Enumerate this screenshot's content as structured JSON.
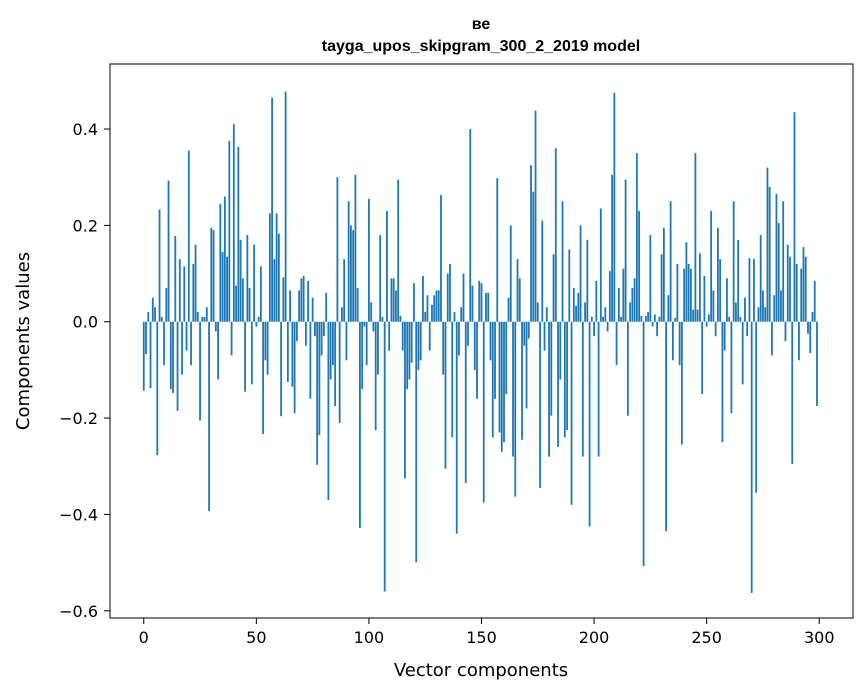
{
  "chart_data": {
    "type": "bar",
    "title_line1": "ве",
    "title_line2": "tayga_upos_skipgram_300_2_2019 model",
    "xlabel": "Vector components",
    "ylabel": "Components values",
    "xlim": [
      -15,
      315
    ],
    "ylim": [
      -0.615,
      0.535
    ],
    "xticks": [
      0,
      50,
      100,
      150,
      200,
      250,
      300
    ],
    "xtick_labels": [
      "0",
      "50",
      "100",
      "150",
      "200",
      "250",
      "300"
    ],
    "yticks": [
      -0.6,
      -0.4,
      -0.2,
      0.0,
      0.2,
      0.4
    ],
    "ytick_labels": [
      "−0.6",
      "−0.4",
      "−0.2",
      "0.0",
      "0.2",
      "0.4"
    ],
    "bar_color": "#1f77b4",
    "values": [
      -0.143,
      -0.067,
      0.02,
      -0.138,
      0.05,
      0.03,
      -0.277,
      0.233,
      0.01,
      -0.09,
      0.07,
      0.293,
      -0.14,
      -0.148,
      0.178,
      -0.185,
      0.13,
      -0.11,
      0.115,
      -0.06,
      0.355,
      -0.09,
      0.12,
      0.16,
      0.02,
      -0.205,
      0.01,
      0.01,
      0.03,
      -0.393,
      0.195,
      0.19,
      -0.02,
      -0.12,
      0.245,
      0.145,
      0.26,
      0.135,
      0.375,
      -0.07,
      0.41,
      0.075,
      0.363,
      0.17,
      0.09,
      -0.145,
      0.18,
      0.07,
      -0.13,
      0.16,
      -0.01,
      0.01,
      0.115,
      -0.233,
      -0.08,
      -0.11,
      0.225,
      0.465,
      0.13,
      0.225,
      0.183,
      -0.196,
      0.092,
      0.478,
      -0.125,
      0.065,
      -0.135,
      -0.19,
      -0.04,
      0.065,
      0.09,
      0.095,
      -0.05,
      0.085,
      -0.16,
      0.05,
      -0.03,
      -0.297,
      -0.235,
      -0.07,
      -0.03,
      0.06,
      -0.37,
      -0.12,
      -0.09,
      -0.175,
      0.3,
      -0.21,
      0.03,
      0.13,
      -0.08,
      0.25,
      0.2,
      0.19,
      0.305,
      0.07,
      -0.428,
      -0.14,
      -0.01,
      -0.09,
      0.255,
      0.04,
      -0.02,
      -0.225,
      -0.11,
      0.18,
      0.01,
      -0.56,
      0.23,
      -0.06,
      0.09,
      0.09,
      0.065,
      0.295,
      0.012,
      -0.06,
      -0.325,
      -0.14,
      -0.12,
      -0.085,
      0.08,
      -0.499,
      -0.1,
      -0.08,
      0.095,
      0.02,
      0.055,
      -0.06,
      0.035,
      0.055,
      0.065,
      0.065,
      0.263,
      -0.11,
      -0.305,
      0.1,
      0.12,
      -0.24,
      0.02,
      -0.44,
      -0.07,
      0.03,
      0.1,
      -0.335,
      -0.05,
      0.4,
      0.075,
      -0.1,
      -0.16,
      0.085,
      0.08,
      -0.375,
      0.06,
      0.06,
      -0.08,
      -0.24,
      -0.16,
      0.298,
      -0.23,
      -0.27,
      -0.25,
      -0.15,
      0.05,
      0.2,
      -0.28,
      -0.363,
      0.13,
      0.09,
      -0.245,
      -0.05,
      -0.18,
      -0.035,
      0.325,
      0.27,
      0.438,
      0.04,
      -0.345,
      0.21,
      -0.06,
      0.03,
      -0.28,
      -0.195,
      0.14,
      0.36,
      -0.26,
      -0.12,
      0.25,
      -0.24,
      -0.225,
      0.15,
      -0.38,
      0.07,
      0.033,
      0.06,
      0.2,
      -0.28,
      0.04,
      0.17,
      -0.425,
      0.01,
      -0.03,
      0.085,
      -0.28,
      0.235,
      0.01,
      0.03,
      -0.02,
      0.105,
      0.305,
      0.475,
      -0.09,
      0.07,
      0.01,
      0.11,
      0.295,
      -0.195,
      0.04,
      0.07,
      0.09,
      0.35,
      0.23,
      0.012,
      -0.507,
      0.012,
      0.02,
      0.18,
      -0.01,
      0.015,
      -0.03,
      0.01,
      0.14,
      0.195,
      -0.435,
      0.055,
      0.25,
      -0.08,
      0.008,
      0.12,
      -0.09,
      -0.255,
      0.11,
      0.165,
      0.12,
      0.11,
      0.025,
      0.35,
      0.025,
      0.142,
      -0.15,
      0.095,
      -0.01,
      0.015,
      0.23,
      0.065,
      -0.03,
      0.195,
      0.13,
      -0.25,
      -0.06,
      0.09,
      0.01,
      -0.19,
      0.25,
      0.04,
      0.17,
      0.01,
      -0.13,
      0.05,
      -0.03,
      0.132,
      -0.563,
      0.13,
      -0.355,
      0.03,
      0.18,
      0.065,
      0.03,
      0.32,
      0.28,
      -0.07,
      0.055,
      0.265,
      0.205,
      0.065,
      0.25,
      -0.04,
      0.16,
      0.135,
      -0.295,
      0.435,
      0.12,
      -0.08,
      0.11,
      0.155,
      0.135,
      -0.025,
      -0.065,
      0.02,
      0.085,
      -0.175
    ]
  }
}
